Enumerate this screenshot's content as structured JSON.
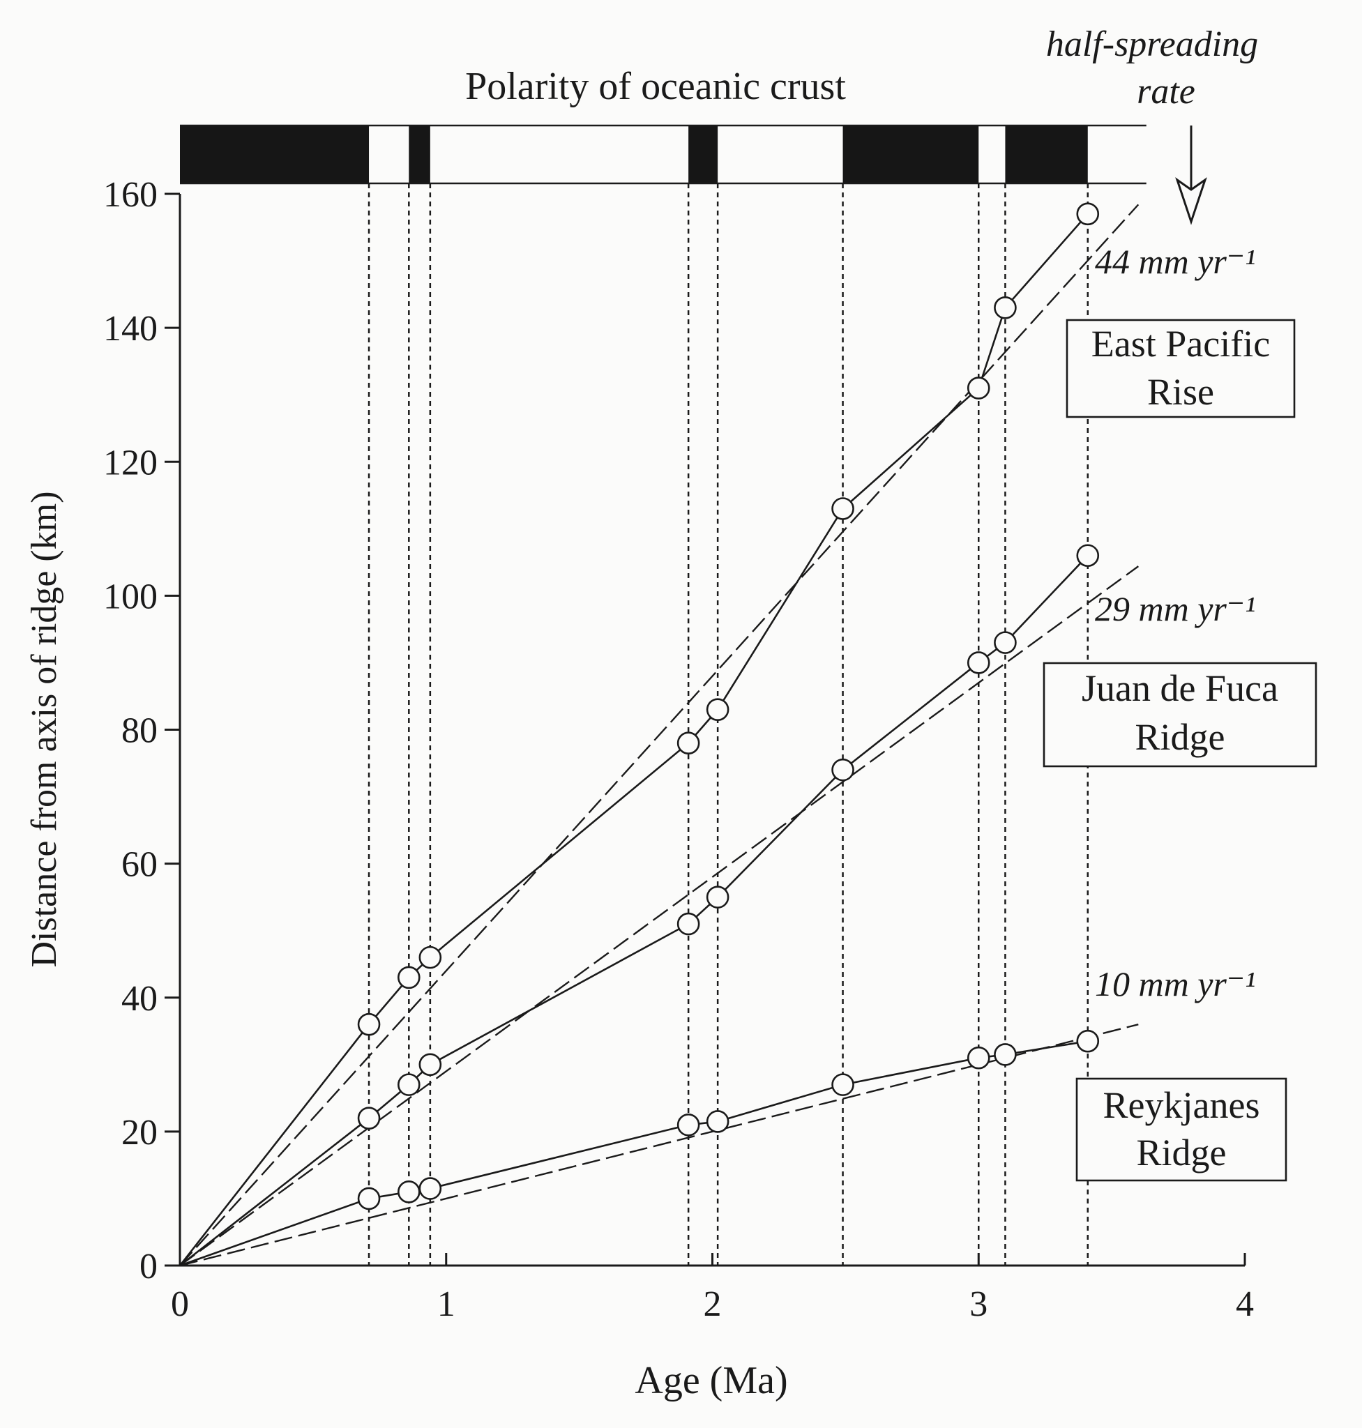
{
  "chart_data": {
    "type": "line",
    "polarity_title": "Polarity of oceanic crust",
    "half_spreading_label": [
      "half-spreading",
      "rate"
    ],
    "xlabel": "Age (Ma)",
    "ylabel": "Distance from axis of ridge (km)",
    "xlim": [
      0,
      4
    ],
    "ylim": [
      0,
      160
    ],
    "x_ticks": [
      0,
      1,
      2,
      3,
      4
    ],
    "x_tick_labels": [
      "0",
      "1",
      "2",
      "3",
      "4"
    ],
    "y_ticks": [
      0,
      20,
      40,
      60,
      80,
      100,
      120,
      140,
      160
    ],
    "y_tick_labels": [
      "0",
      "20",
      "40",
      "60",
      "80",
      "100",
      "120",
      "140",
      "160"
    ],
    "reversal_ages": [
      0.71,
      0.86,
      0.94,
      1.91,
      2.02,
      2.49,
      3.0,
      3.1,
      3.41
    ],
    "normal_polarity_intervals": [
      [
        0,
        0.71
      ],
      [
        0.86,
        0.94
      ],
      [
        1.91,
        2.02
      ],
      [
        2.49,
        3.0
      ],
      [
        3.1,
        3.41
      ]
    ],
    "polarity_band_end": 3.63,
    "series": [
      {
        "name": "East Pacific Rise",
        "label_lines": [
          "East Pacific",
          "Rise"
        ],
        "rate_label": "44 mm yr⁻¹",
        "rate": 44,
        "x": [
          0,
          0.71,
          0.86,
          0.94,
          1.91,
          2.02,
          2.49,
          3.0,
          3.1,
          3.41
        ],
        "y": [
          0,
          36,
          43,
          46,
          78,
          83,
          113,
          131,
          143,
          157
        ]
      },
      {
        "name": "Juan de Fuca Ridge",
        "label_lines": [
          "Juan de Fuca",
          "Ridge"
        ],
        "rate_label": "29 mm yr⁻¹",
        "rate": 29,
        "x": [
          0,
          0.71,
          0.86,
          0.94,
          1.91,
          2.02,
          2.49,
          3.0,
          3.1,
          3.41
        ],
        "y": [
          0,
          22,
          27,
          30,
          51,
          55,
          74,
          90,
          93,
          106
        ]
      },
      {
        "name": "Reykjanes Ridge",
        "label_lines": [
          "Reykjanes",
          "Ridge"
        ],
        "rate_label": "10 mm yr⁻¹",
        "rate": 10,
        "x": [
          0,
          0.71,
          0.86,
          0.94,
          1.91,
          2.02,
          2.49,
          3.0,
          3.1,
          3.41
        ],
        "y": [
          0,
          10,
          11,
          11.5,
          21,
          21.5,
          27,
          31,
          31.5,
          33.5
        ]
      }
    ]
  }
}
